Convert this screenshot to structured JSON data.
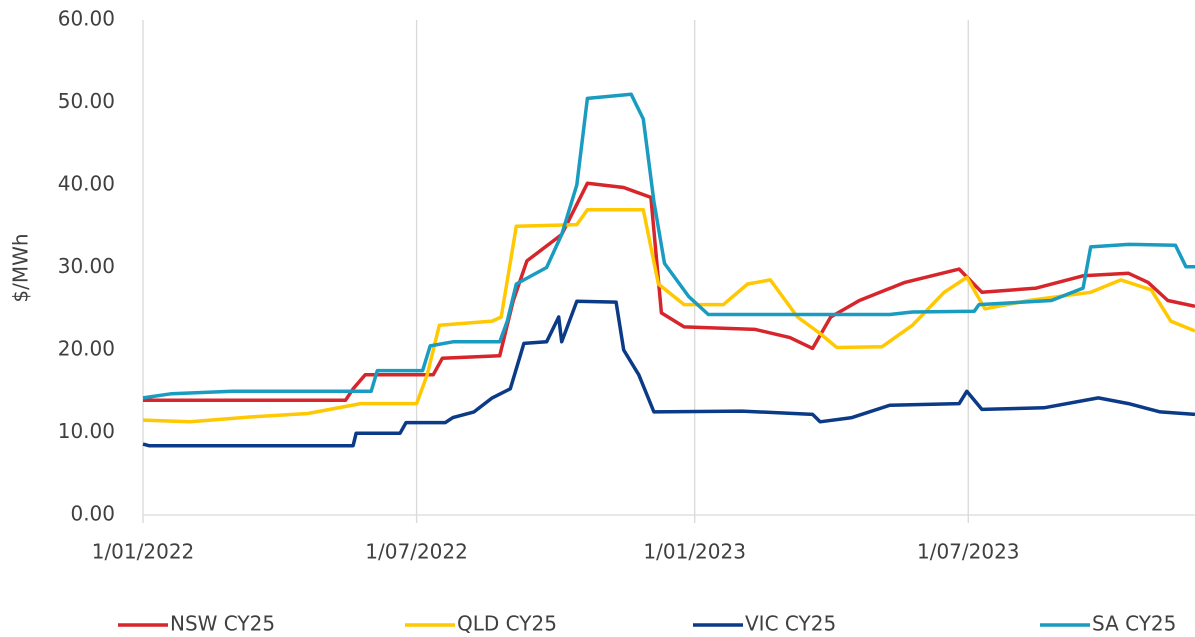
{
  "chart_data": {
    "type": "line",
    "y_label": "$/MWh",
    "ylim": [
      0,
      60
    ],
    "yticks": [
      {
        "value": 0,
        "label": "0.00"
      },
      {
        "value": 10,
        "label": "10.00"
      },
      {
        "value": 20,
        "label": "20.00"
      },
      {
        "value": 30,
        "label": "30.00"
      },
      {
        "value": 40,
        "label": "40.00"
      },
      {
        "value": 50,
        "label": "50.00"
      },
      {
        "value": 60,
        "label": "60.00"
      }
    ],
    "xlim": [
      "2022-01-01",
      "2023-11-28"
    ],
    "xticks": [
      {
        "value": "2022-01-01",
        "label": "1/01/2022"
      },
      {
        "value": "2022-07-01",
        "label": "1/07/2022"
      },
      {
        "value": "2023-01-01",
        "label": "1/01/2023"
      },
      {
        "value": "2023-07-01",
        "label": "1/07/2023"
      }
    ],
    "grid": "x",
    "legend": "bottom",
    "series": [
      {
        "name": "NSW CY25",
        "color": "#d7262b",
        "x": [
          "2022-01-01",
          "2022-05-15",
          "2022-05-20",
          "2022-05-28",
          "2022-07-12",
          "2022-07-18",
          "2022-08-25",
          "2022-09-03",
          "2022-09-12",
          "2022-10-05",
          "2022-10-22",
          "2022-11-15",
          "2022-12-03",
          "2022-12-10",
          "2022-12-25",
          "2023-02-10",
          "2023-03-05",
          "2023-03-20",
          "2023-04-01",
          "2023-04-20",
          "2023-05-20",
          "2023-06-25",
          "2023-07-10",
          "2023-08-15",
          "2023-09-15",
          "2023-10-15",
          "2023-10-28",
          "2023-11-10",
          "2023-11-28"
        ],
        "values": [
          13.9,
          13.9,
          15.3,
          17.0,
          17.0,
          19.0,
          19.3,
          26.0,
          30.8,
          34.0,
          40.2,
          39.7,
          38.5,
          24.5,
          22.8,
          22.5,
          21.5,
          20.2,
          24.0,
          26.0,
          28.2,
          29.8,
          27.0,
          27.5,
          29.0,
          29.3,
          28.2,
          26.0,
          25.3
        ]
      },
      {
        "name": "QLD CY25",
        "color": "#ffc800",
        "x": [
          "2022-01-01",
          "2022-02-01",
          "2022-03-15",
          "2022-04-20",
          "2022-05-25",
          "2022-07-01",
          "2022-07-08",
          "2022-07-16",
          "2022-08-20",
          "2022-08-26",
          "2022-09-05",
          "2022-10-15",
          "2022-10-22",
          "2022-11-28",
          "2022-12-08",
          "2022-12-25",
          "2023-01-20",
          "2023-02-05",
          "2023-02-20",
          "2023-03-10",
          "2023-03-25",
          "2023-04-05",
          "2023-05-05",
          "2023-05-25",
          "2023-06-15",
          "2023-06-30",
          "2023-07-12",
          "2023-08-10",
          "2023-09-20",
          "2023-10-10",
          "2023-10-30",
          "2023-11-12",
          "2023-11-28"
        ],
        "values": [
          11.5,
          11.3,
          11.9,
          12.3,
          13.5,
          13.5,
          17.0,
          23.0,
          23.5,
          24.0,
          35.0,
          35.2,
          37.0,
          37.0,
          28.0,
          25.5,
          25.5,
          28.0,
          28.5,
          24.0,
          22.0,
          20.3,
          20.4,
          23.0,
          27.0,
          28.8,
          25.0,
          26.0,
          27.0,
          28.5,
          27.3,
          23.5,
          22.3
        ]
      },
      {
        "name": "VIC CY25",
        "color": "#0b3a87",
        "x": [
          "2022-01-01",
          "2022-01-05",
          "2022-05-20",
          "2022-05-22",
          "2022-06-20",
          "2022-06-24",
          "2022-07-20",
          "2022-07-25",
          "2022-08-08",
          "2022-08-20",
          "2022-09-01",
          "2022-09-10",
          "2022-09-25",
          "2022-10-03",
          "2022-10-05",
          "2022-10-15",
          "2022-11-10",
          "2022-11-15",
          "2022-11-25",
          "2022-12-05",
          "2023-02-01",
          "2023-03-20",
          "2023-03-25",
          "2023-04-15",
          "2023-05-10",
          "2023-06-25",
          "2023-06-30",
          "2023-07-10",
          "2023-08-20",
          "2023-09-25",
          "2023-10-15",
          "2023-11-05",
          "2023-11-28"
        ],
        "values": [
          8.6,
          8.4,
          8.4,
          9.9,
          9.9,
          11.2,
          11.2,
          11.8,
          12.5,
          14.2,
          15.3,
          20.8,
          21.0,
          24.0,
          21.0,
          25.9,
          25.8,
          20.0,
          17.0,
          12.5,
          12.6,
          12.2,
          11.3,
          11.8,
          13.3,
          13.5,
          15.0,
          12.8,
          13.0,
          14.2,
          13.5,
          12.5,
          12.2
        ]
      },
      {
        "name": "SA CY25",
        "color": "#1a9cc0",
        "x": [
          "2022-01-01",
          "2022-01-20",
          "2022-03-01",
          "2022-06-01",
          "2022-06-05",
          "2022-07-05",
          "2022-07-10",
          "2022-07-25",
          "2022-08-25",
          "2022-08-30",
          "2022-09-05",
          "2022-09-25",
          "2022-10-05",
          "2022-10-15",
          "2022-10-22",
          "2022-11-20",
          "2022-11-28",
          "2022-12-05",
          "2022-12-12",
          "2022-12-28",
          "2023-01-10",
          "2023-05-10",
          "2023-05-25",
          "2023-07-05",
          "2023-07-08",
          "2023-08-25",
          "2023-09-15",
          "2023-09-20",
          "2023-10-15",
          "2023-11-15",
          "2023-11-22",
          "2023-11-28"
        ],
        "values": [
          14.2,
          14.7,
          15.0,
          15.0,
          17.5,
          17.5,
          20.5,
          21.0,
          21.0,
          23.5,
          28.0,
          30.0,
          34.0,
          40.0,
          50.5,
          51.0,
          48.0,
          38.0,
          30.5,
          26.5,
          24.3,
          24.3,
          24.6,
          24.7,
          25.5,
          26.0,
          27.5,
          32.5,
          32.8,
          32.7,
          30.1,
          30.1
        ]
      }
    ]
  }
}
